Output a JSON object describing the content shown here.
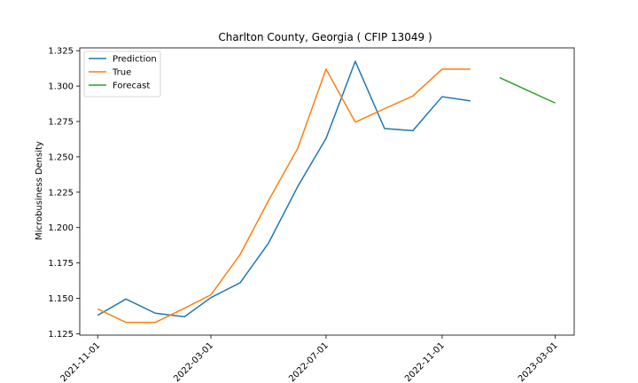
{
  "chart_data": {
    "type": "line",
    "title": "Charlton County, Georgia ( CFIP 13049 )",
    "xlabel": "",
    "ylabel": "Microbusiness Density",
    "xlim": [
      "2021-10-13",
      "2023-03-21"
    ],
    "ylim": [
      1.124,
      1.327
    ],
    "xticks": [
      "2021-11-01",
      "2022-03-01",
      "2022-07-01",
      "2022-11-01",
      "2023-03-01"
    ],
    "yticks": [
      "1.125",
      "1.150",
      "1.175",
      "1.200",
      "1.225",
      "1.250",
      "1.275",
      "1.300",
      "1.325"
    ],
    "grid": false,
    "legend_position": "upper-left",
    "series": [
      {
        "name": "Prediction",
        "color": "#1f77b4",
        "x": [
          "2021-11-01",
          "2021-12-01",
          "2022-01-01",
          "2022-02-01",
          "2022-03-01",
          "2022-04-01",
          "2022-05-01",
          "2022-06-01",
          "2022-07-01",
          "2022-08-01",
          "2022-09-01",
          "2022-10-01",
          "2022-11-01",
          "2022-12-01"
        ],
        "y": [
          1.138,
          1.1495,
          1.1395,
          1.137,
          1.1505,
          1.161,
          1.189,
          1.229,
          1.263,
          1.3175,
          1.27,
          1.2685,
          1.2925,
          1.2895
        ]
      },
      {
        "name": "True",
        "color": "#ff7f0e",
        "x": [
          "2021-11-01",
          "2021-12-01",
          "2022-01-01",
          "2022-02-01",
          "2022-03-01",
          "2022-04-01",
          "2022-05-01",
          "2022-06-01",
          "2022-07-01",
          "2022-08-01",
          "2022-09-01",
          "2022-10-01",
          "2022-11-01",
          "2022-12-01"
        ],
        "y": [
          1.1425,
          1.133,
          1.133,
          1.143,
          1.1525,
          1.181,
          1.219,
          1.256,
          1.312,
          1.2745,
          1.284,
          1.293,
          1.312,
          1.312
        ]
      },
      {
        "name": "Forecast",
        "color": "#2ca02c",
        "x": [
          "2023-01-01",
          "2023-02-01",
          "2023-03-01"
        ],
        "y": [
          1.306,
          1.2965,
          1.288
        ]
      }
    ]
  }
}
